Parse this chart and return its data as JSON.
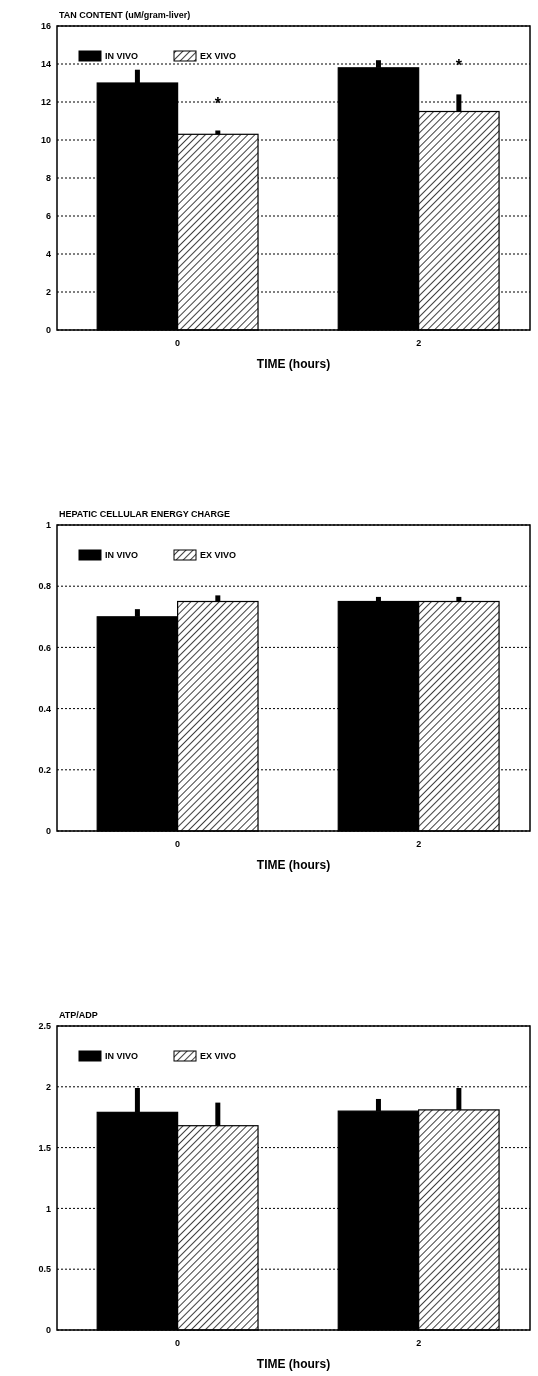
{
  "chart_data": [
    {
      "type": "bar",
      "title": "TAN CONTENT (uM/gram-liver)",
      "xlabel": "TIME (hours)",
      "categories": [
        "0",
        "2"
      ],
      "series": [
        {
          "name": "IN VIVO",
          "color": "#000000",
          "values": [
            13.0,
            13.8
          ],
          "errors": [
            [
              13.0,
              13.7
            ],
            [
              13.8,
              14.2
            ]
          ]
        },
        {
          "name": "EX VIVO",
          "color": "#000000",
          "values": [
            10.3,
            11.5
          ],
          "errors": [
            [
              10.3,
              10.5
            ],
            [
              11.5,
              12.4
            ]
          ]
        }
      ],
      "ylim": [
        0,
        16
      ],
      "yticks": [
        0,
        2,
        4,
        6,
        8,
        10,
        12,
        14,
        16
      ],
      "grid": "y",
      "legend": "top left",
      "annotations": [
        {
          "text": "*",
          "x": "0",
          "y": 12
        },
        {
          "text": "*",
          "x": "2",
          "y": 14
        }
      ]
    },
    {
      "type": "bar",
      "title": "HEPATIC CELLULAR ENERGY CHARGE",
      "xlabel": "TIME (hours)",
      "categories": [
        "0",
        "2"
      ],
      "series": [
        {
          "name": "IN VIVO",
          "color": "#000000",
          "values": [
            0.7,
            0.75
          ],
          "errors": [
            [
              0.7,
              0.725
            ],
            [
              0.75,
              0.765
            ]
          ]
        },
        {
          "name": "EX VIVO",
          "color": "#000000",
          "values": [
            0.75,
            0.75
          ],
          "errors": [
            [
              0.75,
              0.77
            ],
            [
              0.75,
              0.765
            ]
          ]
        }
      ],
      "ylim": [
        0,
        1
      ],
      "yticks": [
        0,
        0.2,
        0.4,
        0.6,
        0.8,
        1
      ],
      "grid": "y",
      "legend": "top left"
    },
    {
      "type": "bar",
      "title": "ATP/ADP",
      "xlabel": "TIME (hours)",
      "categories": [
        "0",
        "2"
      ],
      "series": [
        {
          "name": "IN VIVO",
          "color": "#000000",
          "values": [
            1.79,
            1.8
          ],
          "errors": [
            [
              1.79,
              1.99
            ],
            [
              1.8,
              1.9
            ]
          ]
        },
        {
          "name": "EX VIVO",
          "color": "#000000",
          "values": [
            1.68,
            1.81
          ],
          "errors": [
            [
              1.68,
              1.87
            ],
            [
              1.81,
              1.99
            ]
          ]
        }
      ],
      "ylim": [
        0,
        2.5
      ],
      "yticks": [
        0,
        0.5,
        1,
        1.5,
        2,
        2.5
      ],
      "grid": "y",
      "legend": "top left"
    }
  ]
}
